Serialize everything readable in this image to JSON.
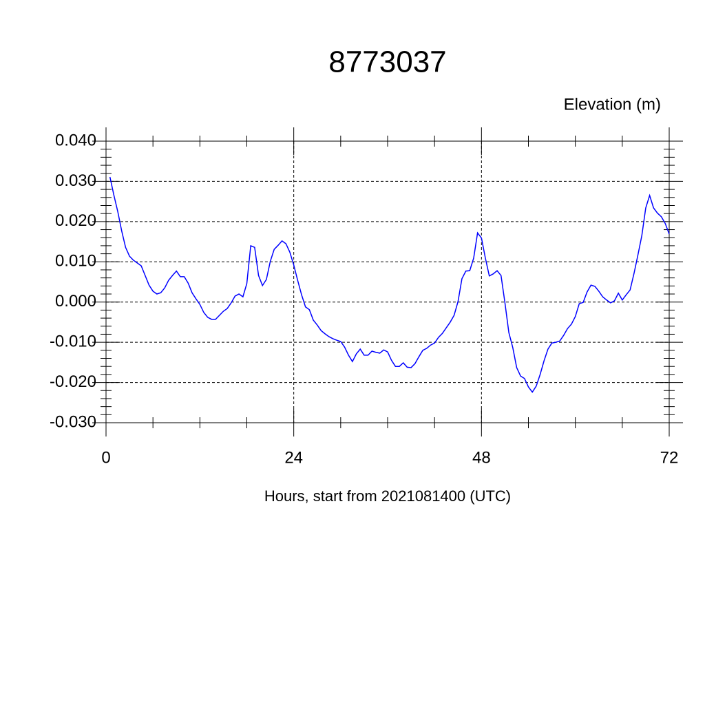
{
  "chart_data": {
    "type": "line",
    "title": "8773037",
    "y_label": "Elevation (m)",
    "x_label": "Hours, start from 2021081400 (UTC)",
    "xlim": [
      0,
      72
    ],
    "xticks": [
      0,
      24,
      48,
      72
    ],
    "ylim": [
      -0.03,
      0.04
    ],
    "yticks": [
      {
        "value": -0.03,
        "label": "-0.030"
      },
      {
        "value": -0.02,
        "label": "-0.020"
      },
      {
        "value": -0.01,
        "label": "-0.010"
      },
      {
        "value": 0,
        "label": "0.000"
      },
      {
        "value": 0.01,
        "label": "0.010"
      },
      {
        "value": 0.02,
        "label": "0.020"
      },
      {
        "value": 0.03,
        "label": "0.030"
      },
      {
        "value": 0.04,
        "label": "0.040"
      }
    ],
    "grid": true,
    "x": [
      0.5,
      1,
      1.5,
      2,
      2.5,
      3,
      3.5,
      4,
      4.5,
      5,
      5.5,
      6,
      6.5,
      7,
      7.5,
      8,
      8.5,
      9,
      9.5,
      10,
      10.5,
      11,
      11.5,
      12,
      12.5,
      13,
      13.5,
      14,
      14.5,
      15,
      15.5,
      16,
      16.5,
      17,
      17.5,
      18,
      18.5,
      19,
      19.5,
      20,
      20.5,
      21,
      21.5,
      22,
      22.5,
      23,
      23.5,
      24,
      24.5,
      25,
      25.5,
      26,
      26.5,
      27,
      27.5,
      28,
      28.5,
      29,
      29.5,
      30,
      30.5,
      31,
      31.5,
      32,
      32.5,
      33,
      33.5,
      34,
      34.5,
      35,
      35.5,
      36,
      36.5,
      37,
      37.5,
      38,
      38.5,
      39,
      39.5,
      40,
      40.5,
      41,
      41.5,
      42,
      42.5,
      43,
      43.5,
      44,
      44.5,
      45,
      45.5,
      46,
      46.5,
      47,
      47.5,
      48,
      48.5,
      49,
      49.5,
      50,
      50.5,
      51,
      51.5,
      52,
      52.5,
      53,
      53.5,
      54,
      54.5,
      55,
      55.5,
      56,
      56.5,
      57,
      57.5,
      58,
      58.5,
      59,
      59.5,
      60,
      60.5,
      61,
      61.5,
      62,
      62.5,
      63,
      63.5,
      64,
      64.5,
      65,
      65.5,
      66,
      66.5,
      67,
      67.5,
      68,
      68.5,
      69,
      69.5,
      70,
      70.5,
      71,
      71.5,
      72
    ],
    "series": [
      {
        "color": "#0000ff",
        "values": [
          0.0311,
          0.0266,
          0.0225,
          0.0177,
          0.0136,
          0.0114,
          0.0104,
          0.0097,
          0.009,
          0.0066,
          0.0042,
          0.0027,
          0.002,
          0.0023,
          0.0035,
          0.0054,
          0.0066,
          0.0077,
          0.0063,
          0.0063,
          0.0047,
          0.0023,
          0.0008,
          -0.0006,
          -0.0026,
          -0.0038,
          -0.0043,
          -0.0043,
          -0.0033,
          -0.0023,
          -0.0016,
          -0.0002,
          0.0015,
          0.002,
          0.0013,
          0.0046,
          0.014,
          0.0136,
          0.0066,
          0.0041,
          0.0056,
          0.0101,
          0.0131,
          0.0141,
          0.0152,
          0.0145,
          0.0124,
          0.0092,
          0.0054,
          0.0018,
          -0.0012,
          -0.0019,
          -0.0045,
          -0.0057,
          -0.0071,
          -0.0079,
          -0.0086,
          -0.0091,
          -0.0095,
          -0.0098,
          -0.0112,
          -0.0132,
          -0.0148,
          -0.0129,
          -0.0117,
          -0.0132,
          -0.0132,
          -0.0122,
          -0.0125,
          -0.0127,
          -0.0119,
          -0.0124,
          -0.0145,
          -0.016,
          -0.016,
          -0.0151,
          -0.0162,
          -0.0163,
          -0.0153,
          -0.0136,
          -0.012,
          -0.0115,
          -0.0107,
          -0.0102,
          -0.0088,
          -0.0078,
          -0.0064,
          -0.005,
          -0.0033,
          0.0001,
          0.0058,
          0.0077,
          0.0078,
          0.0109,
          0.0172,
          0.0159,
          0.0109,
          0.0065,
          0.007,
          0.0078,
          0.0066,
          -0.0002,
          -0.0076,
          -0.0113,
          -0.0163,
          -0.0184,
          -0.019,
          -0.0211,
          -0.0224,
          -0.0209,
          -0.018,
          -0.0146,
          -0.0117,
          -0.0102,
          -0.01,
          -0.0097,
          -0.0083,
          -0.0066,
          -0.0055,
          -0.0036,
          -0.0004,
          -0.0001,
          0.0025,
          0.0042,
          0.0039,
          0.0027,
          0.0013,
          0.0005,
          -0.0002,
          0.0003,
          0.0022,
          0.0005,
          0.0018,
          0.003,
          0.0071,
          0.0117,
          0.0165,
          0.0234,
          0.0265,
          0.0234,
          0.0221,
          0.0212,
          0.0195,
          0.0169
        ]
      }
    ]
  }
}
